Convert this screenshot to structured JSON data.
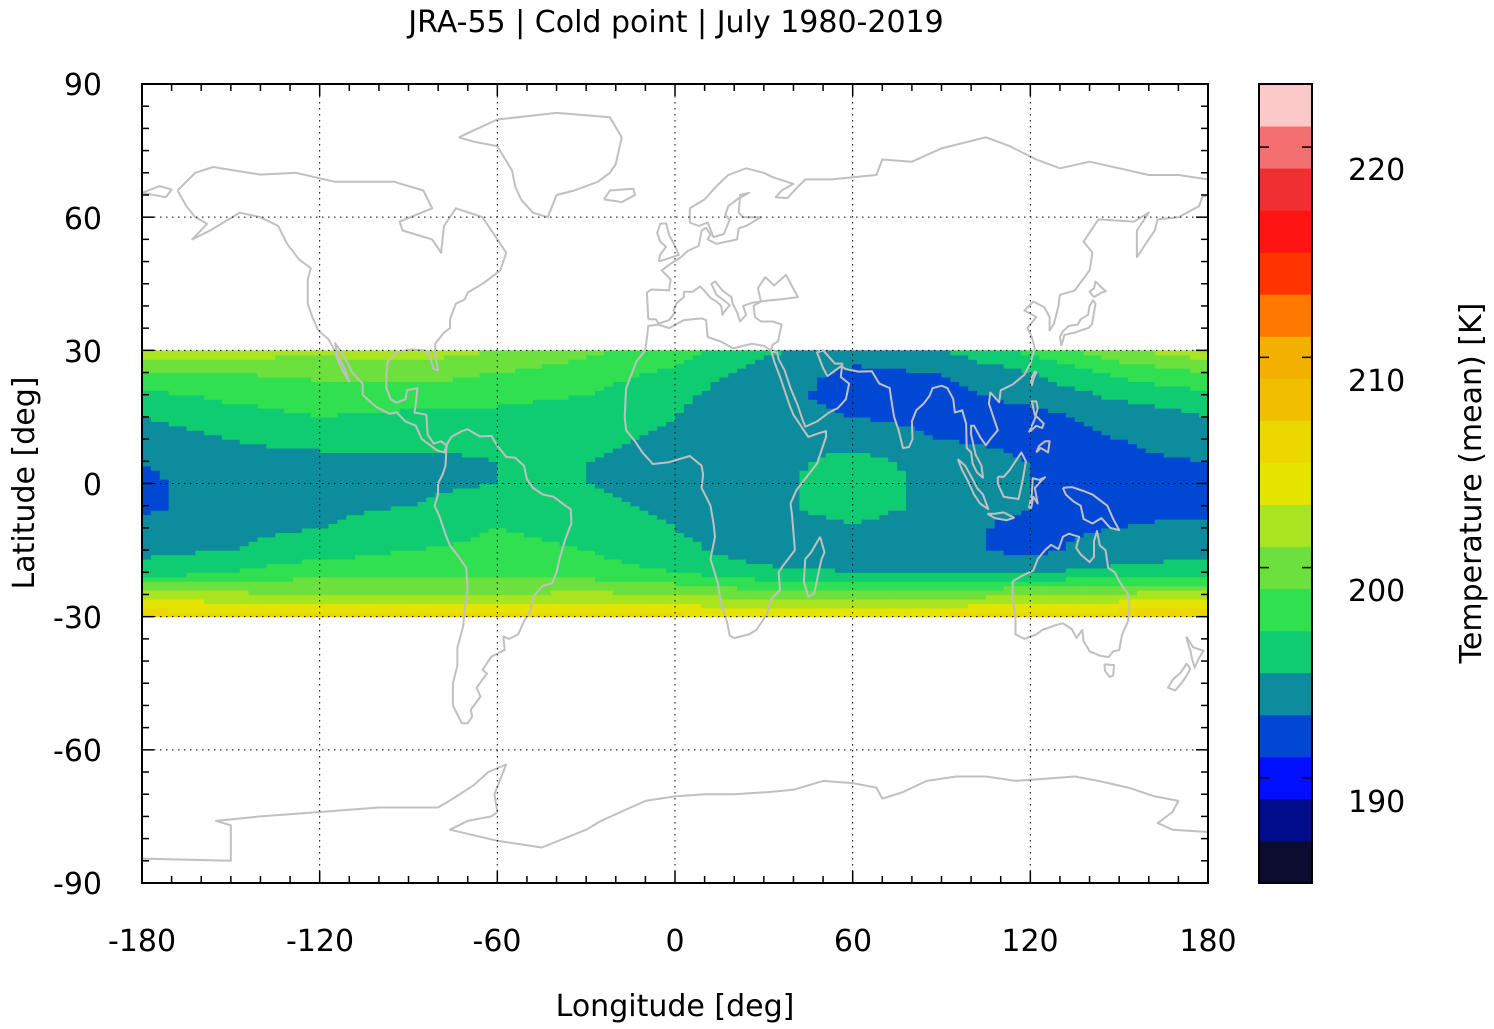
{
  "chart_data": {
    "type": "heatmap",
    "title": "JRA-55 | Cold point | July 1980-2019",
    "xlabel": "Longitude [deg]",
    "ylabel": "Latitude [deg]",
    "colorbar_label": "Temperature (mean) [K]",
    "xlim": [
      -180,
      180
    ],
    "ylim": [
      -90,
      90
    ],
    "data_lat_range": [
      -30,
      30
    ],
    "x_ticks": [
      "-180",
      "-120",
      "-60",
      "0",
      "60",
      "120",
      "180"
    ],
    "y_ticks": [
      "90",
      "60",
      "30",
      "0",
      "-30",
      "-60",
      "-90"
    ],
    "colorbar_ticks": [
      "190",
      "200",
      "210",
      "220"
    ],
    "colorbar_range": [
      185,
      223
    ],
    "colorbar_colors": [
      "#0c0c30",
      "#000c8c",
      "#0010ff",
      "#0048d4",
      "#0c8c9c",
      "#10cc70",
      "#30e050",
      "#6ce03c",
      "#a8e420",
      "#e4e400",
      "#ecd800",
      "#f0c000",
      "#f4b000",
      "#ff7800",
      "#ff3400",
      "#ff1414",
      "#f03030",
      "#f47070",
      "#fcc8c8"
    ],
    "grid": "dotted",
    "coastline_color": "#c0c0c0",
    "fields": {
      "lon": [
        -180,
        -150,
        -120,
        -90,
        -60,
        -30,
        0,
        30,
        60,
        90,
        120,
        150,
        180
      ],
      "lat": [
        -30,
        -25,
        -20,
        -15,
        -10,
        -5,
        0,
        5,
        10,
        15,
        20,
        25,
        30
      ],
      "temperature_K": [
        [
          206.5,
          206.0,
          205.5,
          205.5,
          206.0,
          206.0,
          205.5,
          205.0,
          205.0,
          205.5,
          206.0,
          206.5,
          206.5
        ],
        [
          202.0,
          201.5,
          201.0,
          200.5,
          201.0,
          201.5,
          201.0,
          200.0,
          199.5,
          200.0,
          201.0,
          201.5,
          202.0
        ],
        [
          196.0,
          197.0,
          198.5,
          198.5,
          198.5,
          198.0,
          197.0,
          195.5,
          195.0,
          195.0,
          195.0,
          195.5,
          196.0
        ],
        [
          194.5,
          195.0,
          196.0,
          197.0,
          197.5,
          197.0,
          195.5,
          194.0,
          194.0,
          193.5,
          192.5,
          194.0,
          194.5
        ],
        [
          193.5,
          194.5,
          195.0,
          196.0,
          197.0,
          196.5,
          195.0,
          194.0,
          194.5,
          193.5,
          192.5,
          193.0,
          193.5
        ],
        [
          192.5,
          194.0,
          194.5,
          195.0,
          196.0,
          195.5,
          194.5,
          194.0,
          196.5,
          194.0,
          193.0,
          192.5,
          192.5
        ],
        [
          192.5,
          194.0,
          194.0,
          194.5,
          195.0,
          195.0,
          194.5,
          194.0,
          196.5,
          194.0,
          193.0,
          192.5,
          192.5
        ],
        [
          193.0,
          194.5,
          194.5,
          194.5,
          195.0,
          195.0,
          194.5,
          194.0,
          196.0,
          194.0,
          193.0,
          192.5,
          193.0
        ],
        [
          194.0,
          195.0,
          195.5,
          195.5,
          195.5,
          195.5,
          194.5,
          194.0,
          194.0,
          193.0,
          192.5,
          193.0,
          194.0
        ],
        [
          195.0,
          196.0,
          197.0,
          196.5,
          196.5,
          196.0,
          195.0,
          193.5,
          193.0,
          192.5,
          192.5,
          193.5,
          195.0
        ],
        [
          196.5,
          197.5,
          198.0,
          198.0,
          197.5,
          197.0,
          195.5,
          193.5,
          192.5,
          192.5,
          193.5,
          195.5,
          196.5
        ],
        [
          199.0,
          199.0,
          199.5,
          200.0,
          199.0,
          198.0,
          196.5,
          194.0,
          192.5,
          193.0,
          195.0,
          197.5,
          199.0
        ],
        [
          202.5,
          202.0,
          201.5,
          202.0,
          201.0,
          199.5,
          198.0,
          195.5,
          194.0,
          195.0,
          197.5,
          200.5,
          202.5
        ]
      ]
    }
  }
}
